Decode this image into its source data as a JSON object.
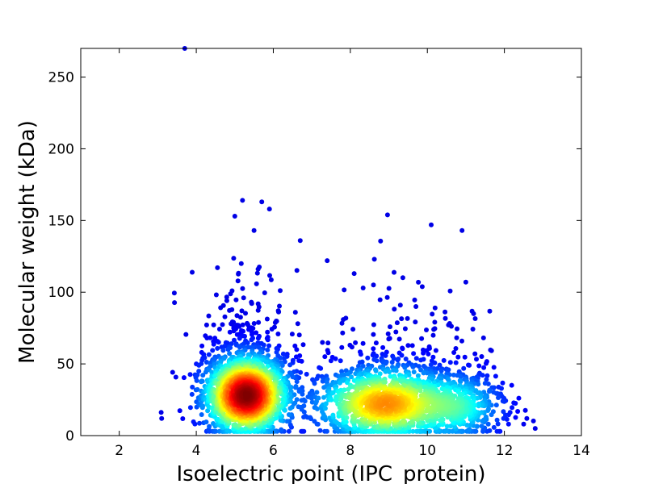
{
  "chart_data": {
    "type": "scatter",
    "xlabel": "Isoelectric point (IPC_protein)",
    "ylabel": "Molecular weight (kDa)",
    "xlim": [
      1,
      14
    ],
    "ylim": [
      0,
      270
    ],
    "xticks": [
      2,
      4,
      6,
      8,
      10,
      12,
      14
    ],
    "yticks": [
      0,
      50,
      100,
      150,
      200,
      250
    ],
    "grid": false,
    "legend": "none",
    "color_map": "jet (point density: blue = low, red = high)",
    "clusters": [
      {
        "center_x": 5.3,
        "center_y": 28,
        "spread_x": 0.55,
        "spread_y": 14,
        "count": 2200
      },
      {
        "center_x": 8.9,
        "center_y": 22,
        "spread_x": 0.9,
        "spread_y": 13,
        "count": 1400
      },
      {
        "center_x": 10.8,
        "center_y": 20,
        "spread_x": 0.6,
        "spread_y": 12,
        "count": 500
      }
    ],
    "outliers": [
      {
        "x": 3.7,
        "y": 270
      },
      {
        "x": 5.0,
        "y": 153
      },
      {
        "x": 5.2,
        "y": 164
      },
      {
        "x": 5.5,
        "y": 143
      },
      {
        "x": 5.7,
        "y": 163
      },
      {
        "x": 5.9,
        "y": 158
      },
      {
        "x": 6.7,
        "y": 136
      },
      {
        "x": 7.4,
        "y": 122
      },
      {
        "x": 8.1,
        "y": 113
      },
      {
        "x": 10.1,
        "y": 147
      },
      {
        "x": 10.9,
        "y": 143
      },
      {
        "x": 11.0,
        "y": 107
      },
      {
        "x": 9.3,
        "y": 91
      },
      {
        "x": 10.2,
        "y": 89
      },
      {
        "x": 12.8,
        "y": 5
      },
      {
        "x": 12.5,
        "y": 8
      },
      {
        "x": 3.1,
        "y": 12
      },
      {
        "x": 4.0,
        "y": 50
      },
      {
        "x": 11.2,
        "y": 85
      },
      {
        "x": 8.6,
        "y": 105
      }
    ]
  }
}
